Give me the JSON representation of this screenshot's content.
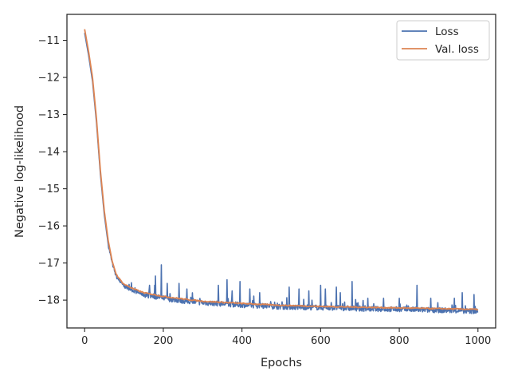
{
  "chart_data": {
    "type": "line",
    "xlabel": "Epochs",
    "ylabel": "Negative log-likelihood",
    "xlim": [
      -45,
      1045
    ],
    "ylim": [
      -18.75,
      -10.3
    ],
    "xticks": [
      0,
      200,
      400,
      600,
      800,
      1000
    ],
    "yticks": [
      -11,
      -12,
      -13,
      -14,
      -15,
      -16,
      -17,
      -18
    ],
    "xtick_labels": [
      "0",
      "200",
      "400",
      "600",
      "800",
      "1000"
    ],
    "ytick_labels": [
      "−11",
      "−12",
      "−13",
      "−14",
      "−15",
      "−16",
      "−17",
      "−18"
    ],
    "grid": false,
    "legend": {
      "placement": "top-right",
      "entries": [
        "Loss",
        "Val. loss"
      ]
    },
    "colors": {
      "loss": "#4c72b0",
      "val_loss": "#dd8452",
      "axes": "#262626"
    },
    "series": [
      {
        "name": "Loss",
        "color": "#4c72b0",
        "x": [
          0,
          10,
          20,
          30,
          40,
          50,
          60,
          70,
          80,
          90,
          100,
          125,
          150,
          200,
          250,
          300,
          400,
          500,
          600,
          700,
          800,
          900,
          1000
        ],
        "values": [
          -10.8,
          -11.4,
          -12.1,
          -13.2,
          -14.6,
          -15.7,
          -16.5,
          -17.0,
          -17.35,
          -17.5,
          -17.62,
          -17.75,
          -17.85,
          -17.95,
          -18.02,
          -18.07,
          -18.13,
          -18.18,
          -18.2,
          -18.23,
          -18.25,
          -18.27,
          -18.3
        ],
        "spikes": [
          {
            "x": 165,
            "y": -17.6
          },
          {
            "x": 178,
            "y": -17.6
          },
          {
            "x": 180,
            "y": -17.35
          },
          {
            "x": 195,
            "y": -17.05
          },
          {
            "x": 210,
            "y": -17.55
          },
          {
            "x": 240,
            "y": -17.55
          },
          {
            "x": 260,
            "y": -17.7
          },
          {
            "x": 340,
            "y": -17.6
          },
          {
            "x": 362,
            "y": -17.45
          },
          {
            "x": 375,
            "y": -17.75
          },
          {
            "x": 395,
            "y": -17.5
          },
          {
            "x": 420,
            "y": -17.7
          },
          {
            "x": 445,
            "y": -17.8
          },
          {
            "x": 520,
            "y": -17.65
          },
          {
            "x": 545,
            "y": -17.7
          },
          {
            "x": 570,
            "y": -17.75
          },
          {
            "x": 600,
            "y": -17.6
          },
          {
            "x": 612,
            "y": -17.7
          },
          {
            "x": 640,
            "y": -17.65
          },
          {
            "x": 650,
            "y": -17.8
          },
          {
            "x": 680,
            "y": -17.5
          },
          {
            "x": 720,
            "y": -17.95
          },
          {
            "x": 760,
            "y": -17.95
          },
          {
            "x": 800,
            "y": -17.95
          },
          {
            "x": 845,
            "y": -17.6
          },
          {
            "x": 880,
            "y": -17.95
          },
          {
            "x": 940,
            "y": -17.95
          },
          {
            "x": 960,
            "y": -17.8
          },
          {
            "x": 990,
            "y": -17.85
          }
        ]
      },
      {
        "name": "Val. loss",
        "color": "#dd8452",
        "x": [
          0,
          10,
          20,
          30,
          40,
          50,
          60,
          70,
          80,
          90,
          100,
          125,
          150,
          200,
          250,
          300,
          400,
          500,
          600,
          700,
          800,
          900,
          1000
        ],
        "values": [
          -10.7,
          -11.3,
          -12.0,
          -13.1,
          -14.5,
          -15.6,
          -16.4,
          -16.95,
          -17.3,
          -17.45,
          -17.57,
          -17.7,
          -17.8,
          -17.9,
          -17.97,
          -18.03,
          -18.09,
          -18.14,
          -18.17,
          -18.19,
          -18.21,
          -18.23,
          -18.25
        ]
      }
    ]
  }
}
